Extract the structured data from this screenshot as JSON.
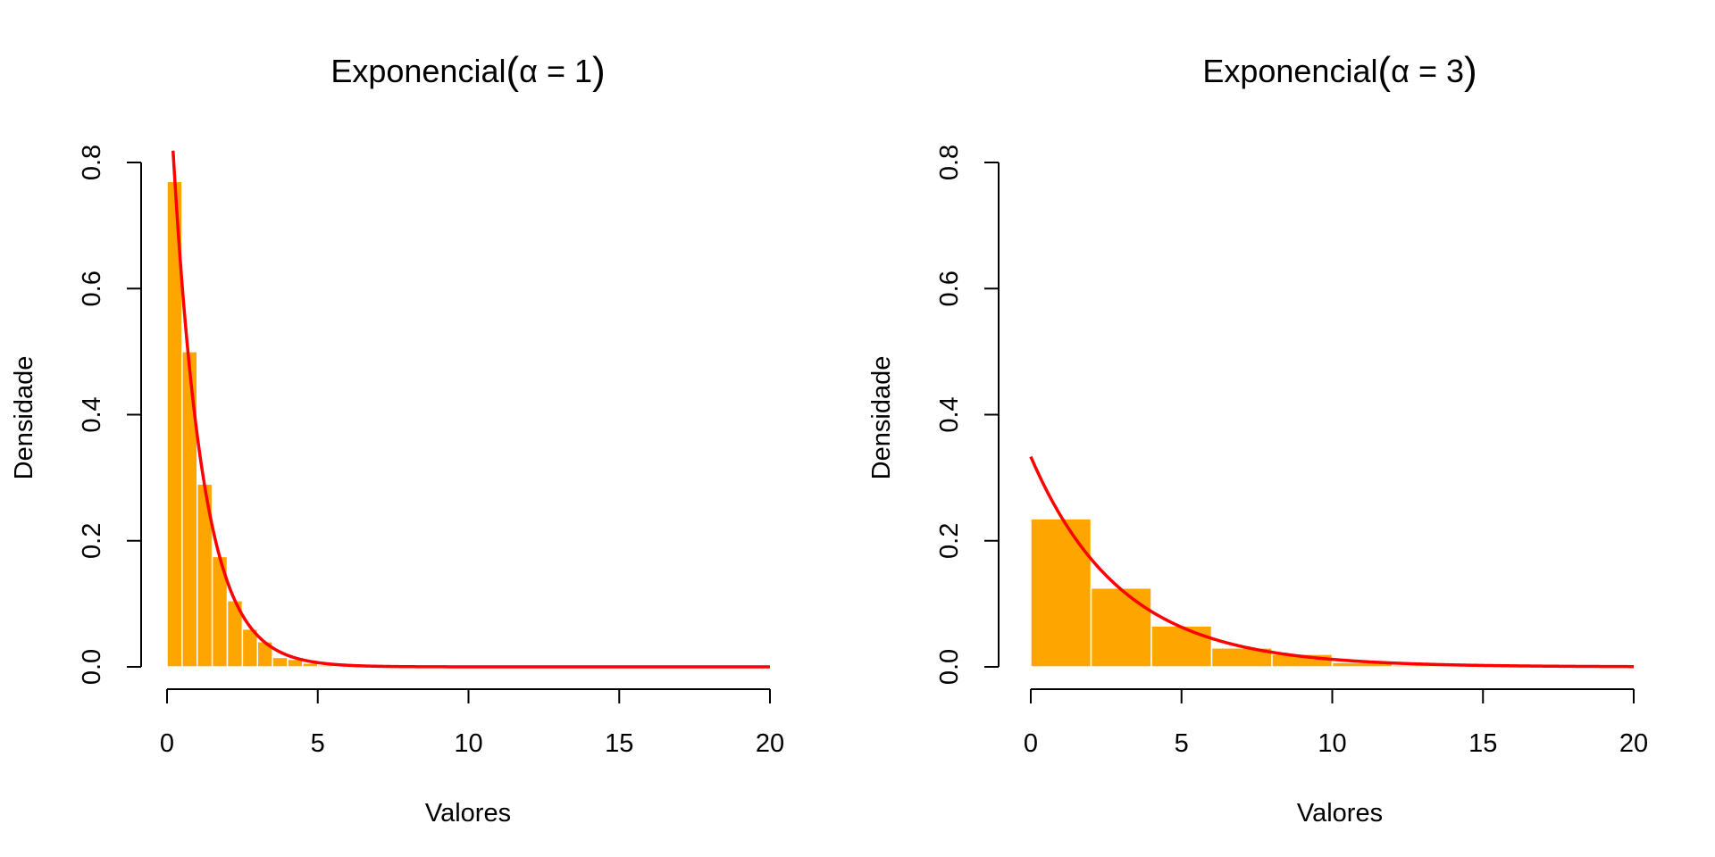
{
  "chart_data": [
    {
      "type": "bar",
      "title_prefix": "Exponencial",
      "title_param": "α = 1",
      "xlabel": "Valores",
      "ylabel": "Densidade",
      "xlim": [
        0,
        20
      ],
      "ylim": [
        0,
        0.8
      ],
      "x_ticks": [
        "0",
        "5",
        "10",
        "15",
        "20"
      ],
      "y_ticks": [
        "0.0",
        "0.2",
        "0.4",
        "0.6",
        "0.8"
      ],
      "bar_color": "#FFA500",
      "curve_color": "#FF0000",
      "curve": "exponential density, mean 1",
      "bins": [
        {
          "x0": 0.0,
          "x1": 0.5,
          "density": 0.77
        },
        {
          "x0": 0.5,
          "x1": 1.0,
          "density": 0.5
        },
        {
          "x0": 1.0,
          "x1": 1.5,
          "density": 0.29
        },
        {
          "x0": 1.5,
          "x1": 2.0,
          "density": 0.175
        },
        {
          "x0": 2.0,
          "x1": 2.5,
          "density": 0.105
        },
        {
          "x0": 2.5,
          "x1": 3.0,
          "density": 0.06
        },
        {
          "x0": 3.0,
          "x1": 3.5,
          "density": 0.04
        },
        {
          "x0": 3.5,
          "x1": 4.0,
          "density": 0.015
        },
        {
          "x0": 4.0,
          "x1": 4.5,
          "density": 0.012
        },
        {
          "x0": 4.5,
          "x1": 5.0,
          "density": 0.006
        },
        {
          "x0": 5.0,
          "x1": 5.5,
          "density": 0.003
        },
        {
          "x0": 5.5,
          "x1": 6.0,
          "density": 0.002
        }
      ]
    },
    {
      "type": "bar",
      "title_prefix": "Exponencial",
      "title_param": "α = 3",
      "xlabel": "Valores",
      "ylabel": "Densidade",
      "xlim": [
        0,
        20
      ],
      "ylim": [
        0,
        0.8
      ],
      "x_ticks": [
        "0",
        "5",
        "10",
        "15",
        "20"
      ],
      "y_ticks": [
        "0.0",
        "0.2",
        "0.4",
        "0.6",
        "0.8"
      ],
      "bar_color": "#FFA500",
      "curve_color": "#FF0000",
      "curve": "exponential density, mean 3",
      "bins": [
        {
          "x0": 0,
          "x1": 2,
          "density": 0.235
        },
        {
          "x0": 2,
          "x1": 4,
          "density": 0.125
        },
        {
          "x0": 4,
          "x1": 6,
          "density": 0.065
        },
        {
          "x0": 6,
          "x1": 8,
          "density": 0.03
        },
        {
          "x0": 8,
          "x1": 10,
          "density": 0.02
        },
        {
          "x0": 10,
          "x1": 12,
          "density": 0.007
        },
        {
          "x0": 12,
          "x1": 14,
          "density": 0.003
        },
        {
          "x0": 14,
          "x1": 16,
          "density": 0.001
        },
        {
          "x0": 16,
          "x1": 18,
          "density": 0.0005
        },
        {
          "x0": 18,
          "x1": 20,
          "density": 0.0003
        }
      ]
    }
  ]
}
